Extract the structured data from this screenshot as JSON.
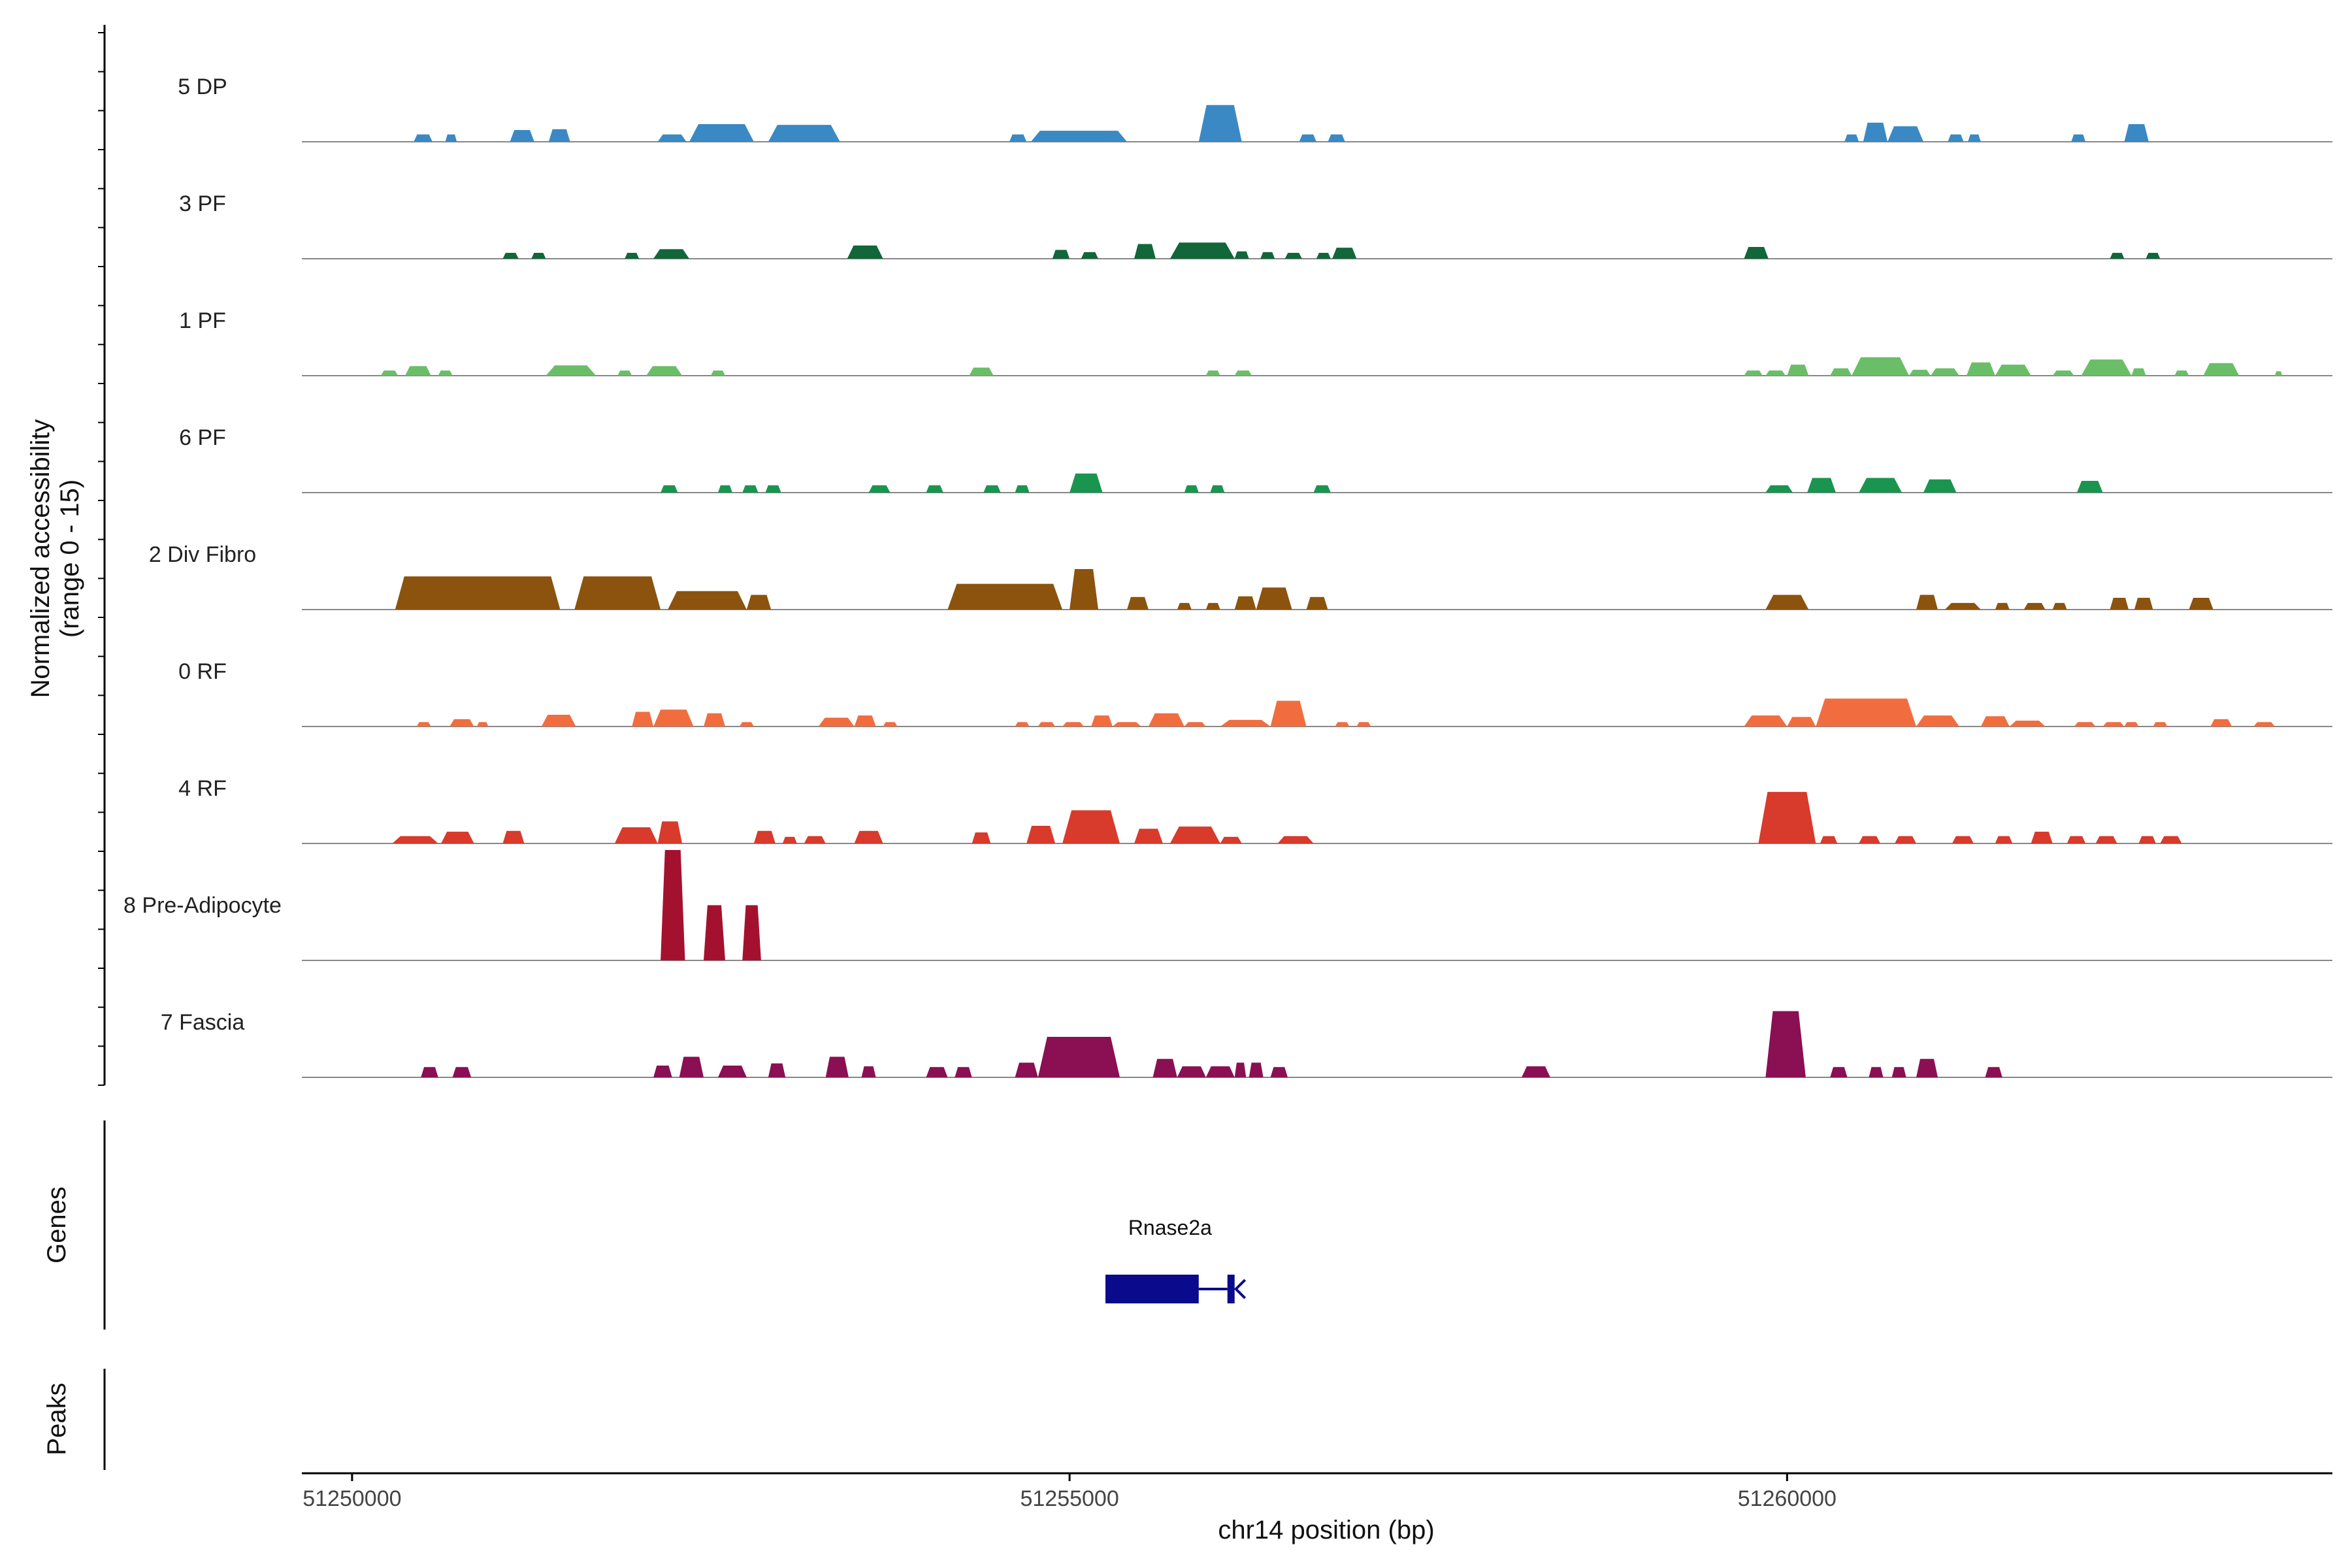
{
  "chart_data": {
    "type": "area",
    "chromosome": "chr14",
    "x_range": [
      51249650,
      51263800
    ],
    "y_range": [
      0,
      15
    ],
    "ylabel_line1": "Normalized accessibility",
    "ylabel_line2": "(range 0 - 15)",
    "xlabel": "chr14 position (bp)",
    "x_ticks": [
      {
        "value": 51250000,
        "label": "51250000"
      },
      {
        "value": 51255000,
        "label": "51255000"
      },
      {
        "value": 51260000,
        "label": "51260000"
      }
    ],
    "genes_panel_label": "Genes",
    "peaks_panel_label": "Peaks",
    "tracks": [
      {
        "name": "5 DP",
        "color": "#3a89c4",
        "peaks": [
          [
            51250430,
            51250560,
            1
          ],
          [
            51250650,
            51250730,
            1
          ],
          [
            51251100,
            51251270,
            1.6
          ],
          [
            51251370,
            51251520,
            1.7
          ],
          [
            51252130,
            51252330,
            1
          ],
          [
            51252350,
            51252800,
            2.4
          ],
          [
            51252900,
            51253400,
            2.3
          ],
          [
            51254580,
            51254700,
            1
          ],
          [
            51254730,
            51255400,
            1.5
          ],
          [
            51255900,
            51256200,
            5
          ],
          [
            51256600,
            51256720,
            1
          ],
          [
            51256800,
            51256920,
            1
          ],
          [
            51260400,
            51260500,
            1
          ],
          [
            51260530,
            51260700,
            2.6
          ],
          [
            51260700,
            51260950,
            2.1
          ],
          [
            51261120,
            51261230,
            1
          ],
          [
            51261260,
            51261350,
            1
          ],
          [
            51261980,
            51262080,
            1
          ],
          [
            51262350,
            51262520,
            2.4
          ]
        ]
      },
      {
        "name": "3 PF",
        "color": "#11663a",
        "peaks": [
          [
            51251050,
            51251160,
            0.8
          ],
          [
            51251250,
            51251350,
            0.8
          ],
          [
            51251900,
            51252000,
            0.8
          ],
          [
            51252100,
            51252350,
            1.3
          ],
          [
            51253450,
            51253700,
            1.8
          ],
          [
            51254880,
            51255000,
            1.2
          ],
          [
            51255080,
            51255200,
            0.9
          ],
          [
            51255450,
            51255600,
            2
          ],
          [
            51255700,
            51256150,
            2.2
          ],
          [
            51256150,
            51256250,
            1
          ],
          [
            51256330,
            51256430,
            0.9
          ],
          [
            51256500,
            51256620,
            0.8
          ],
          [
            51256720,
            51256820,
            0.8
          ],
          [
            51256830,
            51257000,
            1.5
          ],
          [
            51259700,
            51259870,
            1.6
          ],
          [
            51262250,
            51262350,
            0.8
          ],
          [
            51262500,
            51262600,
            0.8
          ]
        ]
      },
      {
        "name": "1 PF",
        "color": "#6abe67",
        "peaks": [
          [
            51250200,
            51250320,
            0.7
          ],
          [
            51250370,
            51250550,
            1.3
          ],
          [
            51250600,
            51250700,
            0.7
          ],
          [
            51251350,
            51251700,
            1.4
          ],
          [
            51251850,
            51251950,
            0.7
          ],
          [
            51252050,
            51252300,
            1.3
          ],
          [
            51252500,
            51252600,
            0.7
          ],
          [
            51254300,
            51254470,
            1.1
          ],
          [
            51255950,
            51256050,
            0.7
          ],
          [
            51256150,
            51256270,
            0.7
          ],
          [
            51259700,
            51259830,
            0.7
          ],
          [
            51259850,
            51259990,
            0.7
          ],
          [
            51260000,
            51260150,
            1.5
          ],
          [
            51260300,
            51260450,
            1
          ],
          [
            51260450,
            51260850,
            2.5
          ],
          [
            51260850,
            51261000,
            0.8
          ],
          [
            51261000,
            51261200,
            1
          ],
          [
            51261250,
            51261450,
            1.8
          ],
          [
            51261450,
            51261700,
            1.5
          ],
          [
            51261850,
            51262000,
            0.7
          ],
          [
            51262050,
            51262400,
            2.2
          ],
          [
            51262400,
            51262500,
            1
          ],
          [
            51262700,
            51262800,
            0.7
          ],
          [
            51262900,
            51263150,
            1.7
          ],
          [
            51263400,
            51263450,
            0.6
          ]
        ]
      },
      {
        "name": "6 PF",
        "color": "#1a9550",
        "peaks": [
          [
            51252150,
            51252270,
            1
          ],
          [
            51252550,
            51252650,
            1
          ],
          [
            51252720,
            51252830,
            1
          ],
          [
            51252880,
            51252990,
            1
          ],
          [
            51253600,
            51253750,
            1
          ],
          [
            51254000,
            51254120,
            1
          ],
          [
            51254400,
            51254520,
            1
          ],
          [
            51254620,
            51254720,
            1
          ],
          [
            51255000,
            51255230,
            2.6
          ],
          [
            51255800,
            51255900,
            1
          ],
          [
            51255980,
            51256080,
            1
          ],
          [
            51256700,
            51256820,
            1
          ],
          [
            51259850,
            51260040,
            1
          ],
          [
            51260140,
            51260340,
            2
          ],
          [
            51260500,
            51260800,
            2
          ],
          [
            51260950,
            51261180,
            1.8
          ],
          [
            51262020,
            51262200,
            1.6
          ]
        ]
      },
      {
        "name": "2 Div Fibro",
        "color": "#8b530d",
        "peaks": [
          [
            51250300,
            51251450,
            4.5
          ],
          [
            51251550,
            51252150,
            4.5
          ],
          [
            51252200,
            51252750,
            2.5
          ],
          [
            51252750,
            51252920,
            2
          ],
          [
            51254150,
            51254950,
            3.5
          ],
          [
            51255000,
            51255200,
            5.5
          ],
          [
            51255400,
            51255550,
            1.7
          ],
          [
            51255750,
            51255850,
            0.9
          ],
          [
            51255950,
            51256050,
            0.9
          ],
          [
            51256150,
            51256300,
            1.8
          ],
          [
            51256300,
            51256550,
            3
          ],
          [
            51256650,
            51256800,
            1.7
          ],
          [
            51259850,
            51260150,
            2
          ],
          [
            51260900,
            51261050,
            2
          ],
          [
            51261100,
            51261350,
            0.9
          ],
          [
            51261450,
            51261550,
            0.9
          ],
          [
            51261650,
            51261800,
            0.9
          ],
          [
            51261850,
            51261950,
            0.9
          ],
          [
            51262250,
            51262380,
            1.6
          ],
          [
            51262420,
            51262550,
            1.6
          ],
          [
            51262800,
            51262970,
            1.6
          ]
        ]
      },
      {
        "name": "0 RF",
        "color": "#f16d3f",
        "peaks": [
          [
            51250450,
            51250550,
            0.6
          ],
          [
            51250680,
            51250850,
            1
          ],
          [
            51250870,
            51250950,
            0.6
          ],
          [
            51251320,
            51251560,
            1.6
          ],
          [
            51251950,
            51252100,
            2
          ],
          [
            51252100,
            51252380,
            2.3
          ],
          [
            51252450,
            51252600,
            1.8
          ],
          [
            51252700,
            51252800,
            0.6
          ],
          [
            51253250,
            51253500,
            1.2
          ],
          [
            51253500,
            51253650,
            1.5
          ],
          [
            51253700,
            51253800,
            0.6
          ],
          [
            51254620,
            51254720,
            0.6
          ],
          [
            51254780,
            51254900,
            0.6
          ],
          [
            51254950,
            51255100,
            0.6
          ],
          [
            51255150,
            51255300,
            1.5
          ],
          [
            51255300,
            51255500,
            0.6
          ],
          [
            51255550,
            51255800,
            1.8
          ],
          [
            51255800,
            51255950,
            0.6
          ],
          [
            51256050,
            51256400,
            0.9
          ],
          [
            51256400,
            51256650,
            3.5
          ],
          [
            51256850,
            51256950,
            0.6
          ],
          [
            51257000,
            51257100,
            0.6
          ],
          [
            51259700,
            51260000,
            1.5
          ],
          [
            51260000,
            51260200,
            1.3
          ],
          [
            51260200,
            51260900,
            3.8
          ],
          [
            51260900,
            51261200,
            1.5
          ],
          [
            51261350,
            51261550,
            1.4
          ],
          [
            51261550,
            51261800,
            0.8
          ],
          [
            51262000,
            51262150,
            0.6
          ],
          [
            51262200,
            51262350,
            0.6
          ],
          [
            51262350,
            51262450,
            0.6
          ],
          [
            51262550,
            51262650,
            0.6
          ],
          [
            51262950,
            51263100,
            1
          ],
          [
            51263250,
            51263400,
            0.6
          ]
        ]
      },
      {
        "name": "4 RF",
        "color": "#d83a2c",
        "peaks": [
          [
            51250280,
            51250600,
            1
          ],
          [
            51250620,
            51250850,
            1.6
          ],
          [
            51251050,
            51251200,
            1.7
          ],
          [
            51251830,
            51252130,
            2.2
          ],
          [
            51252130,
            51252300,
            3
          ],
          [
            51252800,
            51252950,
            1.7
          ],
          [
            51253000,
            51253100,
            0.9
          ],
          [
            51253150,
            51253300,
            1
          ],
          [
            51253500,
            51253700,
            1.7
          ],
          [
            51254320,
            51254450,
            1.5
          ],
          [
            51254700,
            51254900,
            2.4
          ],
          [
            51254950,
            51255350,
            4.5
          ],
          [
            51255450,
            51255650,
            2
          ],
          [
            51255700,
            51256050,
            2.3
          ],
          [
            51256050,
            51256200,
            0.9
          ],
          [
            51256450,
            51256700,
            1
          ],
          [
            51259800,
            51260200,
            7
          ],
          [
            51260230,
            51260350,
            1
          ],
          [
            51260500,
            51260650,
            1
          ],
          [
            51260750,
            51260900,
            1
          ],
          [
            51261150,
            51261300,
            1
          ],
          [
            51261450,
            51261570,
            1
          ],
          [
            51261700,
            51261850,
            1.6
          ],
          [
            51261950,
            51262080,
            1
          ],
          [
            51262150,
            51262300,
            1
          ],
          [
            51262450,
            51262570,
            1
          ],
          [
            51262600,
            51262750,
            1
          ]
        ]
      },
      {
        "name": "8 Pre-Adipocyte",
        "color": "#a4112e",
        "peaks": [
          [
            51252150,
            51252320,
            15
          ],
          [
            51252450,
            51252600,
            7.5
          ],
          [
            51252720,
            51252850,
            7.5
          ]
        ]
      },
      {
        "name": "7 Fascia",
        "color": "#8b0f53",
        "peaks": [
          [
            51250480,
            51250600,
            1.4
          ],
          [
            51250700,
            51250830,
            1.4
          ],
          [
            51252100,
            51252230,
            1.6
          ],
          [
            51252280,
            51252450,
            2.8
          ],
          [
            51252550,
            51252750,
            1.6
          ],
          [
            51252900,
            51253020,
            1.9
          ],
          [
            51253300,
            51253460,
            2.8
          ],
          [
            51253550,
            51253650,
            1.5
          ],
          [
            51254000,
            51254150,
            1.4
          ],
          [
            51254200,
            51254320,
            1.4
          ],
          [
            51254620,
            51254780,
            2
          ],
          [
            51254780,
            51255350,
            5.5
          ],
          [
            51255580,
            51255750,
            2.5
          ],
          [
            51255750,
            51255950,
            1.5
          ],
          [
            51255950,
            51256150,
            1.5
          ],
          [
            51256150,
            51256230,
            2
          ],
          [
            51256250,
            51256350,
            2
          ],
          [
            51256400,
            51256520,
            1.4
          ],
          [
            51258150,
            51258350,
            1.5
          ],
          [
            51259850,
            51260130,
            9
          ],
          [
            51260300,
            51260420,
            1.4
          ],
          [
            51260570,
            51260670,
            1.4
          ],
          [
            51260730,
            51260830,
            1.4
          ],
          [
            51260900,
            51261050,
            2.5
          ],
          [
            51261380,
            51261500,
            1.4
          ]
        ]
      }
    ],
    "gene": {
      "name": "Rnase2a",
      "color": "#0a0a8c",
      "exon_start": 51255250,
      "exon_end": 51255900,
      "intron_end": 51256100,
      "cap_start": 51256100,
      "cap_end": 51256150
    }
  }
}
